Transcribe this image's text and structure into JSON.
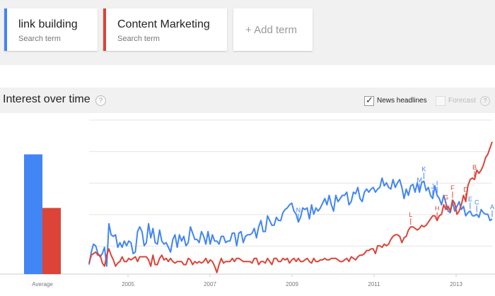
{
  "search_terms": [
    {
      "label": "link building",
      "sublabel": "Search term",
      "color": "#4285f4"
    },
    {
      "label": "Content Marketing",
      "sublabel": "Search term",
      "color": "#db4437"
    }
  ],
  "add_term": {
    "icon": "+",
    "label": "Add term"
  },
  "section": {
    "title": "Interest over time",
    "help_icon": "?"
  },
  "options": {
    "news_headlines": {
      "label": "News headlines",
      "checked": true
    },
    "forecast": {
      "label": "Forecast",
      "checked": false,
      "help_icon": "?"
    }
  },
  "chart_data": {
    "type": "line",
    "x_ticks": [
      "2005",
      "2007",
      "2009",
      "2011",
      "2013"
    ],
    "average": {
      "label": "Average",
      "values": [
        38,
        21
      ]
    },
    "series": [
      {
        "name": "link building",
        "color": "#4285f4",
        "values": [
          6,
          14,
          19,
          18,
          13,
          11,
          13,
          17,
          5,
          32,
          25,
          24,
          25,
          17,
          20,
          17,
          21,
          18,
          21,
          20,
          13,
          14,
          27,
          30,
          27,
          18,
          20,
          32,
          23,
          29,
          20,
          19,
          28,
          21,
          19,
          20,
          17,
          14,
          22,
          25,
          17,
          25,
          21,
          24,
          18,
          20,
          30,
          26,
          22,
          22,
          20,
          27,
          24,
          19,
          27,
          19,
          25,
          21,
          21,
          19,
          24,
          24,
          20,
          21,
          21,
          26,
          26,
          18,
          26,
          27,
          20,
          24,
          25,
          25,
          26,
          29,
          23,
          30,
          34,
          27,
          27,
          37,
          34,
          31,
          31,
          36,
          34,
          34,
          39,
          41,
          42,
          44,
          45,
          40,
          38,
          33,
          36,
          42,
          41,
          42,
          35,
          44,
          38,
          42,
          40,
          42,
          45,
          48,
          44,
          50,
          44,
          40,
          50,
          46,
          48,
          50,
          50,
          52,
          44,
          46,
          52,
          51,
          55,
          48,
          46,
          52,
          54,
          52,
          54,
          55,
          52,
          54,
          55,
          61,
          56,
          58,
          55,
          54,
          60,
          55,
          58,
          60,
          55,
          48,
          54,
          50,
          56,
          57,
          52,
          58,
          52,
          58,
          59,
          53,
          55,
          50,
          48,
          56,
          50,
          48,
          44,
          50,
          45,
          40,
          39,
          46,
          40,
          43,
          46,
          41,
          43,
          37,
          39,
          40,
          37,
          37,
          38,
          36,
          41,
          39,
          38,
          38,
          34,
          35
        ]
      },
      {
        "name": "Content Marketing",
        "color": "#db4437",
        "values": [
          7,
          12,
          13,
          14,
          12,
          12,
          7,
          5,
          12,
          16,
          12,
          9,
          5,
          7,
          8,
          11,
          8,
          8,
          10,
          9,
          10,
          11,
          8,
          11,
          11,
          11,
          11,
          9,
          5,
          12,
          6,
          6,
          10,
          12,
          9,
          10,
          8,
          10,
          8,
          7,
          8,
          8,
          8,
          6,
          6,
          10,
          9,
          6,
          8,
          7,
          8,
          7,
          8,
          10,
          7,
          9,
          8,
          5,
          1,
          6,
          10,
          7,
          8,
          8,
          8,
          10,
          8,
          10,
          10,
          9,
          8,
          8,
          8,
          8,
          7,
          10,
          10,
          6,
          8,
          8,
          7,
          10,
          8,
          6,
          10,
          10,
          8,
          8,
          10,
          9,
          10,
          7,
          9,
          10,
          8,
          10,
          8,
          8,
          9,
          10,
          8,
          7,
          10,
          8,
          8,
          9,
          9,
          10,
          9,
          9,
          10,
          10,
          10,
          9,
          8,
          8,
          9,
          10,
          8,
          11,
          10,
          9,
          11,
          12,
          12,
          13,
          15,
          15,
          16,
          16,
          13,
          18,
          18,
          17,
          19,
          18,
          19,
          22,
          24,
          25,
          25,
          24,
          20,
          23,
          24,
          28,
          30,
          30,
          29,
          28,
          29,
          31,
          30,
          31,
          33,
          35,
          37,
          37,
          34,
          37,
          38,
          44,
          41,
          43,
          40,
          47,
          45,
          38,
          40,
          44,
          50,
          46,
          56,
          60,
          61,
          60,
          66,
          64,
          66,
          69,
          74,
          76,
          80,
          84
        ]
      }
    ],
    "annotations": {
      "link building": [
        {
          "letter": "N",
          "index": 95
        },
        {
          "letter": "M",
          "index": 150
        },
        {
          "letter": "K",
          "index": 152
        },
        {
          "letter": "J",
          "index": 156
        },
        {
          "letter": "I",
          "index": 158
        },
        {
          "letter": "E",
          "index": 173
        },
        {
          "letter": "C",
          "index": 176
        },
        {
          "letter": "A",
          "index": 183
        }
      ],
      "Content Marketing": [
        {
          "letter": "L",
          "index": 146
        },
        {
          "letter": "H",
          "index": 158
        },
        {
          "letter": "G",
          "index": 162
        },
        {
          "letter": "F",
          "index": 165
        },
        {
          "letter": "D",
          "index": 171
        },
        {
          "letter": "B",
          "index": 175
        }
      ]
    },
    "ylim": [
      0,
      100
    ],
    "grid": true
  }
}
